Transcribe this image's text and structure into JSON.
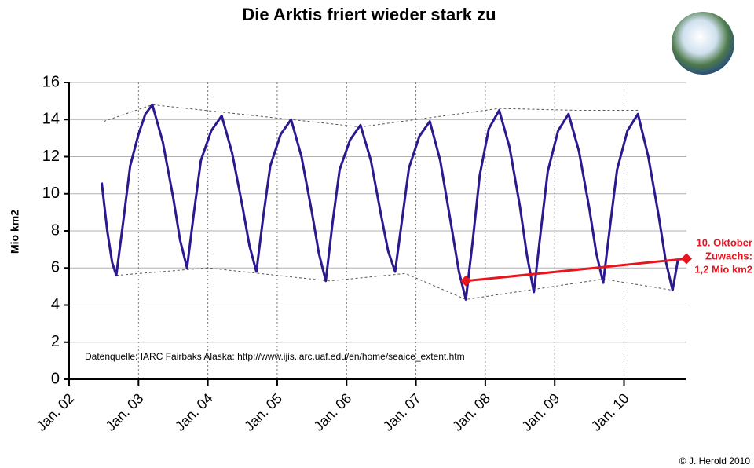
{
  "chart_data": {
    "type": "line",
    "title": "Die Arktis friert wieder stark zu",
    "ylabel": "Mio km2",
    "source": "Datenquelle: IARC Fairbaks Alaska:  http://www.ijis.iarc.uaf.edu/en/home/seaice_extent.htm",
    "credit": "© J. Herold 2010",
    "xlim": [
      2002,
      2010.9
    ],
    "ylim": [
      0,
      16
    ],
    "xticks": [
      {
        "value": 2002,
        "label": "Jan. 02"
      },
      {
        "value": 2003,
        "label": "Jan. 03"
      },
      {
        "value": 2004,
        "label": "Jan. 04"
      },
      {
        "value": 2005,
        "label": "Jan. 05"
      },
      {
        "value": 2006,
        "label": "Jan. 06"
      },
      {
        "value": 2007,
        "label": "Jan. 07"
      },
      {
        "value": 2008,
        "label": "Jan. 08"
      },
      {
        "value": 2009,
        "label": "Jan. 09"
      },
      {
        "value": 2010,
        "label": "Jan. 10"
      }
    ],
    "yticks": [
      0,
      2,
      4,
      6,
      8,
      10,
      12,
      14,
      16
    ],
    "grid": true,
    "series": [
      {
        "color": "#2a1a8e",
        "x": [
          2002.47,
          2002.55,
          2002.62,
          2002.68,
          2002.78,
          2002.88,
          2003.0,
          2003.1,
          2003.2,
          2003.35,
          2003.5,
          2003.6,
          2003.7,
          2003.8,
          2003.9,
          2004.05,
          2004.2,
          2004.35,
          2004.5,
          2004.6,
          2004.7,
          2004.8,
          2004.9,
          2005.05,
          2005.2,
          2005.35,
          2005.5,
          2005.6,
          2005.7,
          2005.8,
          2005.9,
          2006.05,
          2006.2,
          2006.35,
          2006.5,
          2006.6,
          2006.7,
          2006.8,
          2006.9,
          2007.05,
          2007.2,
          2007.35,
          2007.5,
          2007.62,
          2007.72,
          2007.82,
          2007.92,
          2008.05,
          2008.2,
          2008.35,
          2008.5,
          2008.6,
          2008.7,
          2008.8,
          2008.9,
          2009.05,
          2009.2,
          2009.35,
          2009.5,
          2009.6,
          2009.7,
          2009.8,
          2009.9,
          2010.05,
          2010.2,
          2010.35,
          2010.5,
          2010.6,
          2010.7,
          2010.78
        ],
        "values": [
          10.6,
          8.0,
          6.3,
          5.6,
          8.5,
          11.5,
          13.2,
          14.3,
          14.8,
          12.8,
          9.8,
          7.5,
          6.0,
          9.0,
          11.8,
          13.4,
          14.2,
          12.2,
          9.3,
          7.2,
          5.8,
          8.8,
          11.5,
          13.2,
          14.0,
          12.0,
          9.0,
          6.8,
          5.3,
          8.5,
          11.3,
          12.9,
          13.7,
          11.8,
          8.8,
          6.9,
          5.8,
          8.6,
          11.4,
          13.1,
          13.9,
          11.8,
          8.5,
          5.8,
          4.3,
          7.5,
          11.0,
          13.5,
          14.5,
          12.5,
          9.3,
          6.7,
          4.7,
          8.0,
          11.2,
          13.4,
          14.3,
          12.3,
          9.2,
          6.8,
          5.2,
          8.3,
          11.3,
          13.4,
          14.3,
          12.0,
          8.8,
          6.4,
          4.8,
          6.5
        ]
      }
    ],
    "envelopes": [
      {
        "x": [
          2002.5,
          2003.2,
          2006.2,
          2008.2,
          2009.3,
          2010.2
        ],
        "values": [
          13.9,
          14.8,
          13.6,
          14.6,
          14.5,
          14.5
        ]
      },
      {
        "x": [
          2002.68,
          2004.0,
          2005.75,
          2006.85,
          2007.72,
          2009.7,
          2010.7
        ],
        "values": [
          5.6,
          6.0,
          5.3,
          5.7,
          4.3,
          5.4,
          4.8
        ]
      }
    ],
    "annotation": {
      "color": "#e8141e",
      "x": [
        2007.72,
        2010.9
      ],
      "values": [
        5.3,
        6.5
      ],
      "lines": [
        "10. Oktober",
        "Zuwachs:",
        "1,2 Mio km2"
      ]
    }
  }
}
